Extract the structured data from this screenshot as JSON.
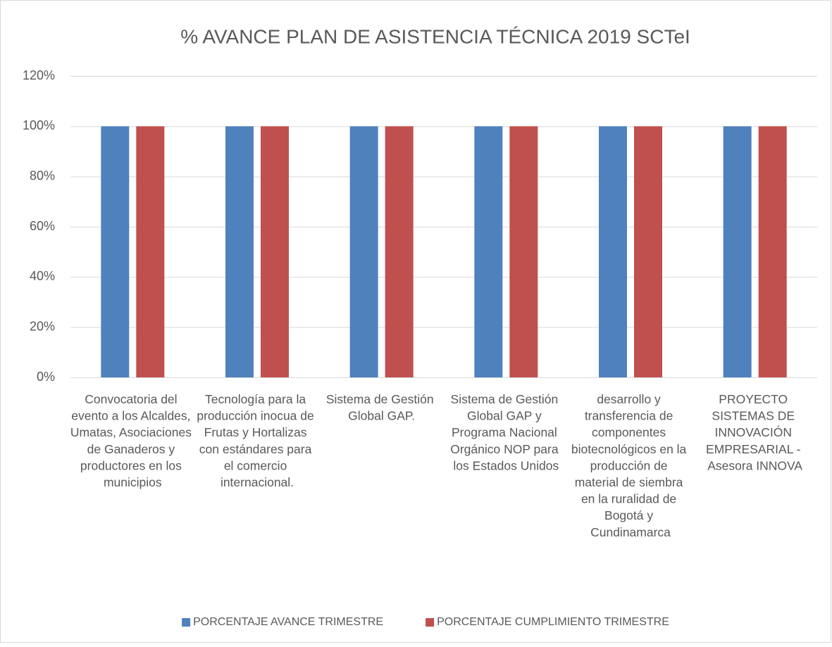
{
  "chart_data": {
    "type": "bar",
    "title": "% AVANCE PLAN DE ASISTENCIA TÉCNICA 2019 SCTeI",
    "categories": [
      "Convocatoria del evento a los Alcaldes, Umatas, Asociaciones de Ganaderos y productores en los municipios",
      "Tecnología para la producción inocua de Frutas y Hortalizas con estándares para el comercio internacional.",
      "Sistema de Gestión Global GAP.",
      "Sistema de Gestión Global GAP y Programa Nacional Orgánico NOP para los Estados Unidos",
      "desarrollo y transferencia de componentes biotecnológicos en la producción de material de siembra en la ruralidad de Bogotá y Cundinamarca",
      "PROYECTO SISTEMAS DE INNOVACIÓN EMPRESARIAL - Asesora INNOVA"
    ],
    "series": [
      {
        "name": "PORCENTAJE AVANCE TRIMESTRE",
        "color": "#4f81bd",
        "values": [
          100,
          100,
          100,
          100,
          100,
          100
        ]
      },
      {
        "name": "PORCENTAJE CUMPLIMIENTO TRIMESTRE",
        "color": "#c0504d",
        "values": [
          100,
          100,
          100,
          100,
          100,
          100
        ]
      }
    ],
    "ylim": [
      0,
      120
    ],
    "yticks": [
      {
        "value": 0,
        "label": "0%"
      },
      {
        "value": 20,
        "label": "20%"
      },
      {
        "value": 40,
        "label": "40%"
      },
      {
        "value": 60,
        "label": "60%"
      },
      {
        "value": 80,
        "label": "80%"
      },
      {
        "value": 100,
        "label": "100%"
      },
      {
        "value": 120,
        "label": "120%"
      }
    ],
    "grid": true,
    "legend": "bottom"
  }
}
